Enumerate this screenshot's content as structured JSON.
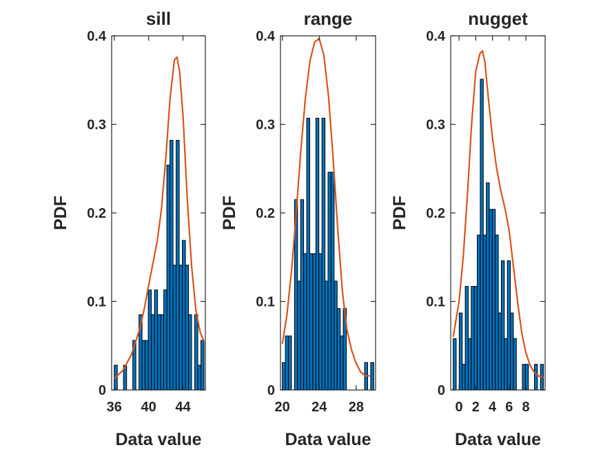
{
  "chart_data": [
    {
      "type": "bar",
      "title": "sill",
      "xlabel": "Data value",
      "ylabel": "PDF",
      "xlim": [
        35.7,
        46.6
      ],
      "ylim": [
        0,
        0.4
      ],
      "xticks": [
        36,
        40,
        44
      ],
      "yticks": [
        0,
        0.1,
        0.2,
        0.3,
        0.4
      ],
      "bars": [
        {
          "x0": 36.0,
          "x1": 36.36,
          "y": 0.028
        },
        {
          "x0": 36.36,
          "x1": 36.72,
          "y": 0.0
        },
        {
          "x0": 36.72,
          "x1": 37.08,
          "y": 0.0
        },
        {
          "x0": 37.08,
          "x1": 37.44,
          "y": 0.028
        },
        {
          "x0": 37.44,
          "x1": 37.8,
          "y": 0.0
        },
        {
          "x0": 37.8,
          "x1": 38.16,
          "y": 0.0
        },
        {
          "x0": 38.16,
          "x1": 38.52,
          "y": 0.056
        },
        {
          "x0": 38.52,
          "x1": 38.88,
          "y": 0.0
        },
        {
          "x0": 38.88,
          "x1": 39.24,
          "y": 0.085
        },
        {
          "x0": 39.24,
          "x1": 39.6,
          "y": 0.056
        },
        {
          "x0": 39.6,
          "x1": 39.96,
          "y": 0.056
        },
        {
          "x0": 39.96,
          "x1": 40.32,
          "y": 0.113
        },
        {
          "x0": 40.32,
          "x1": 40.68,
          "y": 0.085
        },
        {
          "x0": 40.68,
          "x1": 41.04,
          "y": 0.113
        },
        {
          "x0": 41.04,
          "x1": 41.4,
          "y": 0.085
        },
        {
          "x0": 41.4,
          "x1": 41.76,
          "y": 0.085
        },
        {
          "x0": 41.76,
          "x1": 42.12,
          "y": 0.113
        },
        {
          "x0": 42.12,
          "x1": 42.48,
          "y": 0.254
        },
        {
          "x0": 42.48,
          "x1": 42.84,
          "y": 0.282
        },
        {
          "x0": 42.84,
          "x1": 43.2,
          "y": 0.141
        },
        {
          "x0": 43.2,
          "x1": 43.56,
          "y": 0.282
        },
        {
          "x0": 43.56,
          "x1": 43.92,
          "y": 0.141
        },
        {
          "x0": 43.92,
          "x1": 44.28,
          "y": 0.169
        },
        {
          "x0": 44.28,
          "x1": 44.64,
          "y": 0.141
        },
        {
          "x0": 44.64,
          "x1": 45.0,
          "y": 0.085
        },
        {
          "x0": 45.0,
          "x1": 45.36,
          "y": 0.0
        },
        {
          "x0": 45.36,
          "x1": 45.72,
          "y": 0.085
        },
        {
          "x0": 45.72,
          "x1": 46.08,
          "y": 0.028
        },
        {
          "x0": 46.08,
          "x1": 46.44,
          "y": 0.056
        }
      ],
      "curve": {
        "x": [
          36.0,
          37.0,
          38.0,
          39.0,
          39.5,
          40.0,
          40.5,
          41.0,
          41.5,
          42.0,
          42.5,
          43.0,
          43.3,
          43.6,
          44.0,
          44.5,
          45.0,
          45.5,
          46.0,
          46.44
        ],
        "y": [
          0.013,
          0.022,
          0.04,
          0.07,
          0.092,
          0.118,
          0.143,
          0.168,
          0.205,
          0.262,
          0.33,
          0.373,
          0.376,
          0.36,
          0.31,
          0.215,
          0.14,
          0.09,
          0.065,
          0.055
        ]
      }
    },
    {
      "type": "bar",
      "title": "range",
      "xlabel": "Data value",
      "ylabel": "PDF",
      "xlim": [
        19.8,
        30.1
      ],
      "ylim": [
        0,
        0.4
      ],
      "xticks": [
        20,
        24,
        28
      ],
      "yticks": [
        0,
        0.1,
        0.2,
        0.3,
        0.4
      ],
      "bars": [
        {
          "x0": 20.0,
          "x1": 20.33,
          "y": 0.031
        },
        {
          "x0": 20.33,
          "x1": 20.66,
          "y": 0.061
        },
        {
          "x0": 20.66,
          "x1": 20.99,
          "y": 0.061
        },
        {
          "x0": 20.99,
          "x1": 21.32,
          "y": 0.0
        },
        {
          "x0": 21.32,
          "x1": 21.65,
          "y": 0.215
        },
        {
          "x0": 21.65,
          "x1": 21.98,
          "y": 0.123
        },
        {
          "x0": 21.98,
          "x1": 22.31,
          "y": 0.215
        },
        {
          "x0": 22.31,
          "x1": 22.64,
          "y": 0.154
        },
        {
          "x0": 22.64,
          "x1": 22.97,
          "y": 0.307
        },
        {
          "x0": 22.97,
          "x1": 23.3,
          "y": 0.154
        },
        {
          "x0": 23.3,
          "x1": 23.63,
          "y": 0.154
        },
        {
          "x0": 23.63,
          "x1": 23.96,
          "y": 0.307
        },
        {
          "x0": 23.96,
          "x1": 24.29,
          "y": 0.154
        },
        {
          "x0": 24.29,
          "x1": 24.62,
          "y": 0.307
        },
        {
          "x0": 24.62,
          "x1": 24.95,
          "y": 0.123
        },
        {
          "x0": 24.95,
          "x1": 25.28,
          "y": 0.246
        },
        {
          "x0": 25.28,
          "x1": 25.61,
          "y": 0.246
        },
        {
          "x0": 25.61,
          "x1": 25.94,
          "y": 0.123
        },
        {
          "x0": 25.94,
          "x1": 26.27,
          "y": 0.092
        },
        {
          "x0": 26.27,
          "x1": 26.6,
          "y": 0.061
        },
        {
          "x0": 26.6,
          "x1": 26.93,
          "y": 0.092
        },
        {
          "x0": 26.93,
          "x1": 27.26,
          "y": 0.0
        },
        {
          "x0": 27.26,
          "x1": 27.59,
          "y": 0.0
        },
        {
          "x0": 27.59,
          "x1": 27.92,
          "y": 0.0
        },
        {
          "x0": 27.92,
          "x1": 28.25,
          "y": 0.0
        },
        {
          "x0": 28.25,
          "x1": 28.58,
          "y": 0.0
        },
        {
          "x0": 28.58,
          "x1": 28.91,
          "y": 0.0
        },
        {
          "x0": 28.91,
          "x1": 29.24,
          "y": 0.031
        },
        {
          "x0": 29.24,
          "x1": 29.57,
          "y": 0.0
        },
        {
          "x0": 29.57,
          "x1": 29.9,
          "y": 0.031
        }
      ],
      "curve": {
        "x": [
          20.0,
          20.5,
          21.0,
          21.5,
          22.0,
          22.5,
          23.0,
          23.5,
          24.0,
          24.5,
          25.0,
          25.5,
          26.0,
          26.5,
          27.0,
          27.5,
          28.0,
          28.5,
          29.0,
          29.5
        ],
        "y": [
          0.052,
          0.085,
          0.135,
          0.2,
          0.27,
          0.33,
          0.372,
          0.393,
          0.397,
          0.378,
          0.332,
          0.262,
          0.182,
          0.112,
          0.068,
          0.045,
          0.03,
          0.02,
          0.016,
          0.016
        ]
      }
    },
    {
      "type": "bar",
      "title": "nugget",
      "xlabel": "Data value",
      "ylabel": "PDF",
      "xlim": [
        -1.0,
        10.3
      ],
      "ylim": [
        0,
        0.4
      ],
      "xticks": [
        0,
        2,
        4,
        6,
        8
      ],
      "yticks": [
        0,
        0.1,
        0.2,
        0.3,
        0.4
      ],
      "bars": [
        {
          "x0": -0.7,
          "x1": -0.34,
          "y": 0.058
        },
        {
          "x0": -0.34,
          "x1": 0.02,
          "y": 0.0
        },
        {
          "x0": 0.02,
          "x1": 0.38,
          "y": 0.087
        },
        {
          "x0": 0.38,
          "x1": 0.74,
          "y": 0.029
        },
        {
          "x0": 0.74,
          "x1": 1.1,
          "y": 0.117
        },
        {
          "x0": 1.1,
          "x1": 1.46,
          "y": 0.058
        },
        {
          "x0": 1.46,
          "x1": 1.82,
          "y": 0.117
        },
        {
          "x0": 1.82,
          "x1": 2.18,
          "y": 0.117
        },
        {
          "x0": 2.18,
          "x1": 2.54,
          "y": 0.175
        },
        {
          "x0": 2.54,
          "x1": 2.9,
          "y": 0.351
        },
        {
          "x0": 2.9,
          "x1": 3.26,
          "y": 0.175
        },
        {
          "x0": 3.26,
          "x1": 3.62,
          "y": 0.234
        },
        {
          "x0": 3.62,
          "x1": 3.98,
          "y": 0.204
        },
        {
          "x0": 3.98,
          "x1": 4.34,
          "y": 0.204
        },
        {
          "x0": 4.34,
          "x1": 4.7,
          "y": 0.175
        },
        {
          "x0": 4.7,
          "x1": 5.06,
          "y": 0.087
        },
        {
          "x0": 5.06,
          "x1": 5.42,
          "y": 0.146
        },
        {
          "x0": 5.42,
          "x1": 5.78,
          "y": 0.058
        },
        {
          "x0": 5.78,
          "x1": 6.14,
          "y": 0.146
        },
        {
          "x0": 6.14,
          "x1": 6.5,
          "y": 0.087
        },
        {
          "x0": 6.5,
          "x1": 6.86,
          "y": 0.058
        },
        {
          "x0": 6.86,
          "x1": 7.22,
          "y": 0.0
        },
        {
          "x0": 7.22,
          "x1": 7.58,
          "y": 0.0
        },
        {
          "x0": 7.58,
          "x1": 7.94,
          "y": 0.029
        },
        {
          "x0": 7.94,
          "x1": 8.3,
          "y": 0.029
        },
        {
          "x0": 8.3,
          "x1": 8.66,
          "y": 0.0
        },
        {
          "x0": 8.66,
          "x1": 9.02,
          "y": 0.0
        },
        {
          "x0": 9.02,
          "x1": 9.38,
          "y": 0.029
        },
        {
          "x0": 9.38,
          "x1": 9.74,
          "y": 0.0
        },
        {
          "x0": 9.74,
          "x1": 10.1,
          "y": 0.029
        }
      ],
      "curve": {
        "x": [
          -0.7,
          0.0,
          0.5,
          1.0,
          1.5,
          2.0,
          2.5,
          2.8,
          3.1,
          3.5,
          4.0,
          4.5,
          5.0,
          5.5,
          6.0,
          6.5,
          7.0,
          7.5,
          8.0,
          8.5,
          9.0,
          9.5,
          10.1
        ],
        "y": [
          0.06,
          0.1,
          0.15,
          0.22,
          0.3,
          0.36,
          0.38,
          0.383,
          0.37,
          0.33,
          0.285,
          0.25,
          0.225,
          0.205,
          0.18,
          0.14,
          0.1,
          0.065,
          0.042,
          0.028,
          0.02,
          0.016,
          0.014
        ]
      }
    }
  ]
}
